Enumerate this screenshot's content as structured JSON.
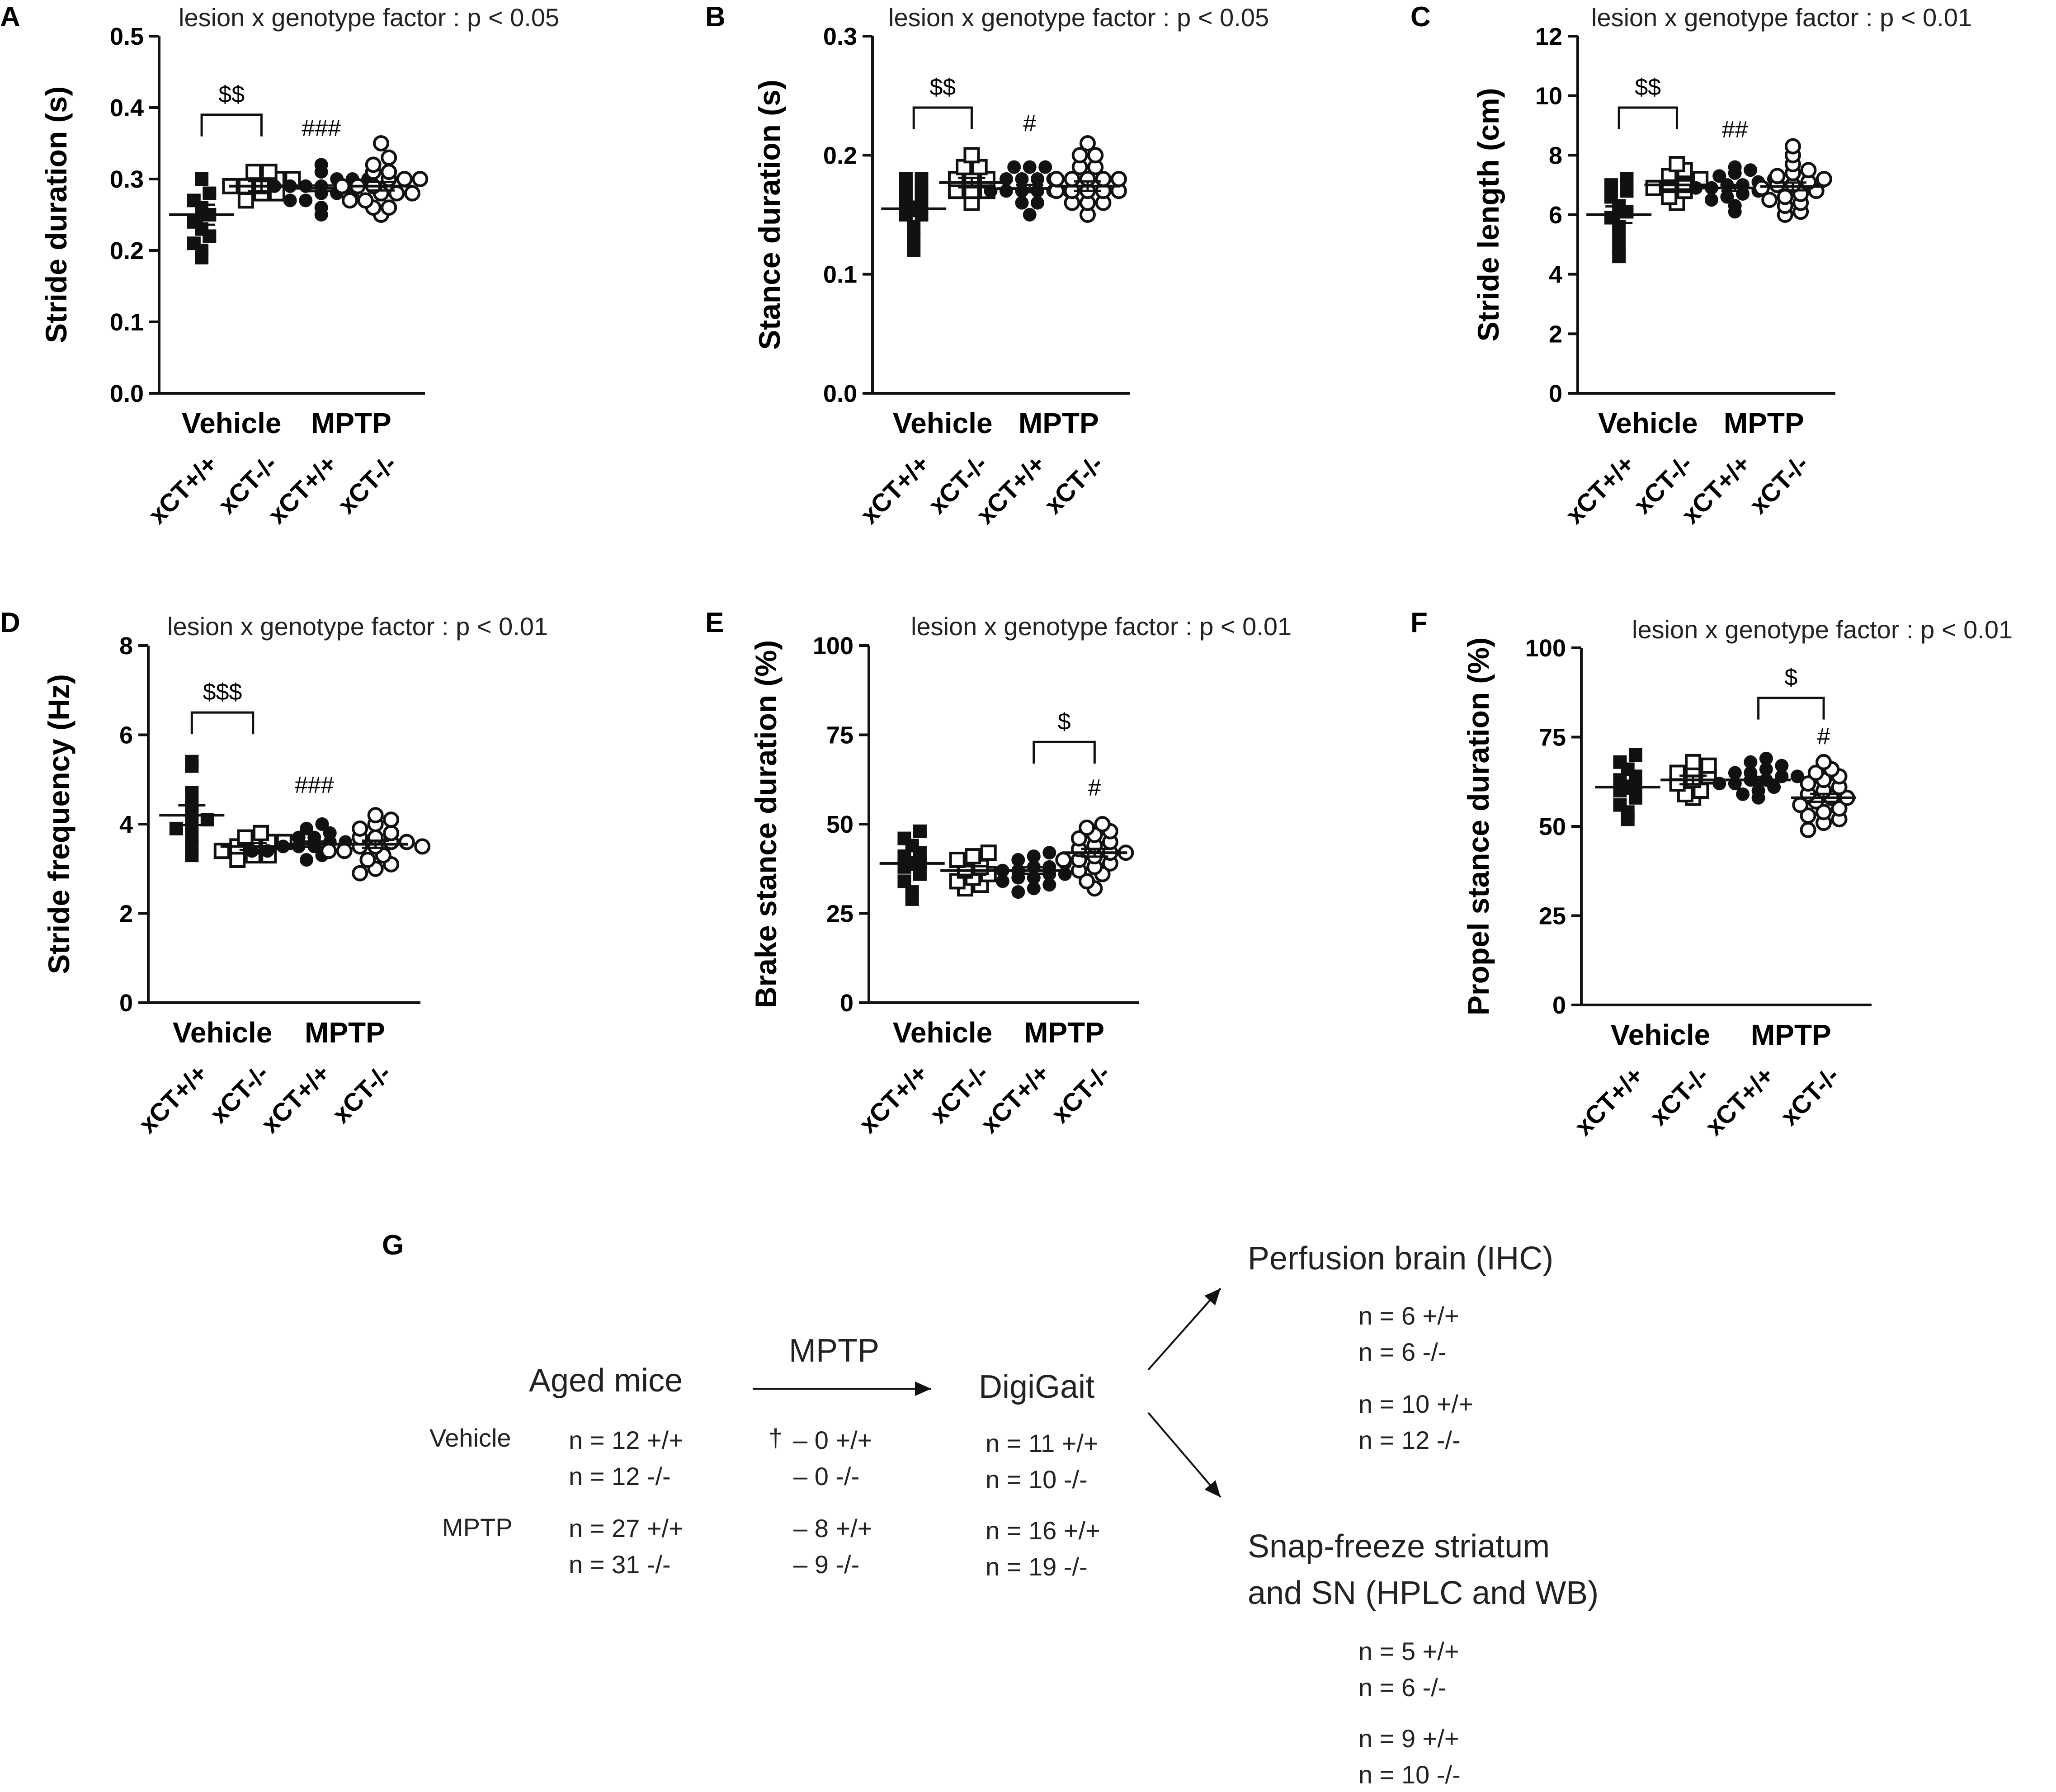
{
  "chart_data": [
    {
      "panel": "A",
      "type": "scatter",
      "subtitle": "lesion x genotype factor : p < 0.05",
      "ylabel": "Stride duration (s)",
      "ylim": [
        0,
        0.5
      ],
      "yticks": [
        "0.0",
        "0.1",
        "0.2",
        "0.3",
        "0.4",
        "0.5"
      ],
      "tick_values": [
        0,
        0.1,
        0.2,
        0.3,
        0.4,
        0.5
      ],
      "groups": [
        "Vehicle",
        "MPTP"
      ],
      "categories": [
        "xCT+/+",
        "xCT-/-",
        "xCT+/+",
        "xCT-/-"
      ],
      "series": [
        {
          "name": "Vehicle xCT+/+",
          "marker": "filled-square",
          "mean": 0.25,
          "sem": 0.014,
          "values": [
            0.19,
            0.2,
            0.21,
            0.22,
            0.23,
            0.24,
            0.25,
            0.26,
            0.27,
            0.28,
            0.3
          ]
        },
        {
          "name": "Vehicle xCT-/-",
          "marker": "open-square",
          "mean": 0.29,
          "sem": 0.007,
          "values": [
            0.27,
            0.28,
            0.28,
            0.29,
            0.29,
            0.29,
            0.3,
            0.3,
            0.31,
            0.31
          ]
        },
        {
          "name": "MPTP xCT+/+",
          "marker": "filled-circle",
          "mean": 0.287,
          "sem": 0.004,
          "values": [
            0.25,
            0.26,
            0.27,
            0.27,
            0.28,
            0.28,
            0.28,
            0.29,
            0.29,
            0.29,
            0.29,
            0.3,
            0.3,
            0.3,
            0.31,
            0.32
          ]
        },
        {
          "name": "MPTP xCT-/-",
          "marker": "open-circle",
          "mean": 0.29,
          "sem": 0.006,
          "values": [
            0.25,
            0.26,
            0.26,
            0.27,
            0.27,
            0.28,
            0.28,
            0.28,
            0.29,
            0.29,
            0.29,
            0.3,
            0.3,
            0.3,
            0.31,
            0.31,
            0.32,
            0.33,
            0.35
          ]
        }
      ],
      "annotations": [
        {
          "text": "$$",
          "kind": "bracket",
          "from": 0,
          "to": 1,
          "y": 0.39
        },
        {
          "text": "###",
          "kind": "above",
          "cat": 2,
          "y": 0.36
        }
      ]
    },
    {
      "panel": "B",
      "type": "scatter",
      "subtitle": "lesion x genotype factor : p < 0.05",
      "ylabel": "Stance duration (s)",
      "ylim": [
        0,
        0.3
      ],
      "yticks": [
        "0.0",
        "0.1",
        "0.2",
        "0.3"
      ],
      "tick_values": [
        0,
        0.1,
        0.2,
        0.3
      ],
      "groups": [
        "Vehicle",
        "MPTP"
      ],
      "categories": [
        "xCT+/+",
        "xCT-/-",
        "xCT+/+",
        "xCT-/-"
      ],
      "series": [
        {
          "name": "Vehicle xCT+/+",
          "marker": "filled-square",
          "mean": 0.155,
          "sem": 0.006,
          "values": [
            0.12,
            0.13,
            0.14,
            0.15,
            0.15,
            0.16,
            0.16,
            0.17,
            0.17,
            0.18,
            0.18
          ]
        },
        {
          "name": "Vehicle xCT-/-",
          "marker": "open-square",
          "mean": 0.177,
          "sem": 0.004,
          "values": [
            0.16,
            0.17,
            0.17,
            0.17,
            0.18,
            0.18,
            0.18,
            0.19,
            0.19,
            0.2
          ]
        },
        {
          "name": "MPTP xCT+/+",
          "marker": "filled-circle",
          "mean": 0.172,
          "sem": 0.003,
          "values": [
            0.15,
            0.16,
            0.16,
            0.17,
            0.17,
            0.17,
            0.17,
            0.17,
            0.18,
            0.18,
            0.18,
            0.18,
            0.19,
            0.19,
            0.19,
            0.17
          ]
        },
        {
          "name": "MPTP xCT-/-",
          "marker": "open-circle",
          "mean": 0.174,
          "sem": 0.004,
          "values": [
            0.15,
            0.16,
            0.16,
            0.16,
            0.17,
            0.17,
            0.17,
            0.17,
            0.17,
            0.18,
            0.18,
            0.18,
            0.18,
            0.18,
            0.19,
            0.19,
            0.2,
            0.2,
            0.21
          ]
        }
      ],
      "annotations": [
        {
          "text": "$$",
          "kind": "bracket",
          "from": 0,
          "to": 1,
          "y": 0.24
        },
        {
          "text": "#",
          "kind": "above",
          "cat": 2,
          "y": 0.22
        }
      ]
    },
    {
      "panel": "C",
      "type": "scatter",
      "subtitle": "lesion x genotype factor : p < 0.01",
      "ylabel": "Stride length (cm)",
      "ylim": [
        0,
        12
      ],
      "yticks": [
        "0",
        "2",
        "4",
        "6",
        "8",
        "10",
        "12"
      ],
      "tick_values": [
        0,
        2,
        4,
        6,
        8,
        10,
        12
      ],
      "groups": [
        "Vehicle",
        "MPTP"
      ],
      "categories": [
        "xCT+/+",
        "xCT-/-",
        "xCT+/+",
        "xCT-/-"
      ],
      "series": [
        {
          "name": "Vehicle xCT+/+",
          "marker": "filled-square",
          "mean": 6.0,
          "sem": 0.28,
          "values": [
            4.6,
            4.9,
            5.3,
            5.6,
            5.9,
            6.1,
            6.3,
            6.6,
            6.8,
            7.0,
            7.2
          ]
        },
        {
          "name": "Vehicle xCT-/-",
          "marker": "open-square",
          "mean": 7.0,
          "sem": 0.15,
          "values": [
            6.4,
            6.6,
            6.8,
            6.9,
            7.0,
            7.0,
            7.2,
            7.3,
            7.5,
            7.7
          ]
        },
        {
          "name": "MPTP xCT+/+",
          "marker": "filled-circle",
          "mean": 6.9,
          "sem": 0.1,
          "values": [
            6.1,
            6.3,
            6.5,
            6.6,
            6.7,
            6.8,
            6.9,
            6.9,
            7.0,
            7.0,
            7.1,
            7.2,
            7.3,
            7.4,
            7.5,
            7.6
          ]
        },
        {
          "name": "MPTP xCT-/-",
          "marker": "open-circle",
          "mean": 6.95,
          "sem": 0.13,
          "values": [
            6.0,
            6.1,
            6.3,
            6.4,
            6.5,
            6.6,
            6.7,
            6.8,
            6.9,
            7.0,
            7.0,
            7.1,
            7.2,
            7.3,
            7.4,
            7.5,
            7.7,
            8.0,
            8.3
          ]
        }
      ],
      "annotations": [
        {
          "text": "$$",
          "kind": "bracket",
          "from": 0,
          "to": 1,
          "y": 9.6
        },
        {
          "text": "##",
          "kind": "above",
          "cat": 2,
          "y": 8.6
        }
      ]
    },
    {
      "panel": "D",
      "type": "scatter",
      "subtitle": "lesion x genotype factor : p < 0.01",
      "ylabel": "Stride frequency (Hz)",
      "ylim": [
        0,
        8
      ],
      "yticks": [
        "0",
        "2",
        "4",
        "6",
        "8"
      ],
      "tick_values": [
        0,
        2,
        4,
        6,
        8
      ],
      "groups": [
        "Vehicle",
        "MPTP"
      ],
      "categories": [
        "xCT+/+",
        "xCT-/-",
        "xCT+/+",
        "xCT-/-"
      ],
      "series": [
        {
          "name": "Vehicle xCT+/+",
          "marker": "filled-square",
          "mean": 4.2,
          "sem": 0.22,
          "values": [
            3.3,
            3.5,
            3.7,
            3.9,
            4.0,
            4.1,
            4.3,
            4.4,
            4.7,
            5.3,
            5.4
          ]
        },
        {
          "name": "Vehicle xCT-/-",
          "marker": "open-square",
          "mean": 3.5,
          "sem": 0.08,
          "values": [
            3.2,
            3.3,
            3.3,
            3.4,
            3.5,
            3.5,
            3.6,
            3.7,
            3.8,
            3.6
          ]
        },
        {
          "name": "MPTP xCT+/+",
          "marker": "filled-circle",
          "mean": 3.55,
          "sem": 0.06,
          "values": [
            3.2,
            3.3,
            3.4,
            3.4,
            3.5,
            3.5,
            3.5,
            3.6,
            3.6,
            3.6,
            3.7,
            3.7,
            3.8,
            3.9,
            4.0,
            3.5
          ]
        },
        {
          "name": "MPTP xCT-/-",
          "marker": "open-circle",
          "mean": 3.55,
          "sem": 0.08,
          "values": [
            2.9,
            3.0,
            3.1,
            3.2,
            3.3,
            3.4,
            3.4,
            3.5,
            3.5,
            3.6,
            3.6,
            3.7,
            3.7,
            3.8,
            3.9,
            4.0,
            4.1,
            4.2,
            3.5
          ]
        }
      ],
      "annotations": [
        {
          "text": "$$$",
          "kind": "bracket",
          "from": 0,
          "to": 1,
          "y": 6.5
        },
        {
          "text": "###",
          "kind": "above",
          "cat": 2,
          "y": 4.7
        }
      ]
    },
    {
      "panel": "E",
      "type": "scatter",
      "subtitle": "lesion x genotype factor : p < 0.01",
      "ylabel": "Brake stance duration (%)",
      "ylim": [
        0,
        100
      ],
      "yticks": [
        "0",
        "25",
        "50",
        "75",
        "100"
      ],
      "tick_values": [
        0,
        25,
        50,
        75,
        100
      ],
      "groups": [
        "Vehicle",
        "MPTP"
      ],
      "categories": [
        "xCT+/+",
        "xCT-/-",
        "xCT+/+",
        "xCT-/-"
      ],
      "series": [
        {
          "name": "Vehicle xCT+/+",
          "marker": "filled-square",
          "mean": 39,
          "sem": 1.8,
          "values": [
            29,
            31,
            34,
            36,
            38,
            39,
            41,
            42,
            44,
            46,
            48
          ]
        },
        {
          "name": "Vehicle xCT-/-",
          "marker": "open-square",
          "mean": 37,
          "sem": 1.2,
          "values": [
            32,
            33,
            34,
            35,
            36,
            37,
            38,
            40,
            41,
            42
          ]
        },
        {
          "name": "MPTP xCT+/+",
          "marker": "filled-circle",
          "mean": 37,
          "sem": 0.9,
          "values": [
            31,
            32,
            33,
            34,
            35,
            35,
            36,
            36,
            37,
            37,
            38,
            38,
            39,
            40,
            41,
            42
          ]
        },
        {
          "name": "MPTP xCT-/-",
          "marker": "open-circle",
          "mean": 42,
          "sem": 1.1,
          "values": [
            32,
            34,
            36,
            37,
            38,
            39,
            40,
            40,
            41,
            42,
            42,
            43,
            44,
            45,
            46,
            47,
            48,
            49,
            50
          ]
        }
      ],
      "annotations": [
        {
          "text": "$",
          "kind": "bracket",
          "from": 2,
          "to": 3,
          "y": 73
        },
        {
          "text": "#",
          "kind": "above",
          "cat": 3,
          "y": 58
        }
      ]
    },
    {
      "panel": "F",
      "type": "scatter",
      "subtitle": "lesion x genotype factor : p < 0.01",
      "ylabel": "Propel stance duration (%)",
      "ylim": [
        0,
        100
      ],
      "yticks": [
        "0",
        "25",
        "50",
        "75",
        "100"
      ],
      "tick_values": [
        0,
        25,
        50,
        75,
        100
      ],
      "groups": [
        "Vehicle",
        "MPTP"
      ],
      "categories": [
        "xCT+/+",
        "xCT-/-",
        "xCT+/+",
        "xCT-/-"
      ],
      "series": [
        {
          "name": "Vehicle xCT+/+",
          "marker": "filled-square",
          "mean": 61,
          "sem": 1.8,
          "values": [
            52,
            54,
            56,
            58,
            60,
            61,
            63,
            64,
            66,
            68,
            70
          ]
        },
        {
          "name": "Vehicle xCT-/-",
          "marker": "open-square",
          "mean": 63,
          "sem": 1.2,
          "values": [
            58,
            59,
            60,
            62,
            63,
            64,
            65,
            66,
            67,
            68
          ]
        },
        {
          "name": "MPTP xCT+/+",
          "marker": "filled-circle",
          "mean": 63,
          "sem": 0.9,
          "values": [
            58,
            59,
            60,
            61,
            62,
            62,
            63,
            63,
            64,
            64,
            65,
            65,
            66,
            67,
            68,
            69
          ]
        },
        {
          "name": "MPTP xCT-/-",
          "marker": "open-circle",
          "mean": 58,
          "sem": 1.1,
          "values": [
            49,
            51,
            52,
            53,
            54,
            55,
            56,
            57,
            58,
            58,
            59,
            60,
            61,
            62,
            63,
            64,
            65,
            66,
            68
          ]
        }
      ],
      "annotations": [
        {
          "text": "$",
          "kind": "bracket",
          "from": 2,
          "to": 3,
          "y": 86
        },
        {
          "text": "#",
          "kind": "above",
          "cat": 3,
          "y": 73
        }
      ]
    }
  ],
  "diagram": {
    "panel": "G",
    "aged_title": "Aged mice",
    "mptp_label": "MPTP",
    "digigait_title": "DigiGait",
    "vehicle_label": "Vehicle",
    "mptp_row_label": "MPTP",
    "aged_vehicle": [
      "n = 12 +/+",
      "n = 12 -/-"
    ],
    "aged_mptp": [
      "n = 27 +/+",
      "n = 31 -/-"
    ],
    "dagger": "†",
    "deaths_vehicle": [
      "– 0 +/+",
      "– 0 -/-"
    ],
    "deaths_mptp": [
      "– 8 +/+",
      "– 9 -/-"
    ],
    "digigait_vehicle": [
      "n = 11 +/+",
      "n = 10 -/-"
    ],
    "digigait_mptp": [
      "n = 16 +/+",
      "n = 19 -/-"
    ],
    "perfusion_title": "Perfusion brain (IHC)",
    "perfusion_vehicle": [
      "n = 6 +/+",
      "n = 6 -/-"
    ],
    "perfusion_mptp": [
      "n = 10 +/+",
      "n = 12 -/-"
    ],
    "snap_title_1": "Snap-freeze striatum",
    "snap_title_2": "and SN (HPLC and WB)",
    "snap_vehicle": [
      "n = 5 +/+",
      "n = 6 -/-"
    ],
    "snap_mptp": [
      "n = 9 +/+",
      "n = 10 -/-"
    ]
  }
}
